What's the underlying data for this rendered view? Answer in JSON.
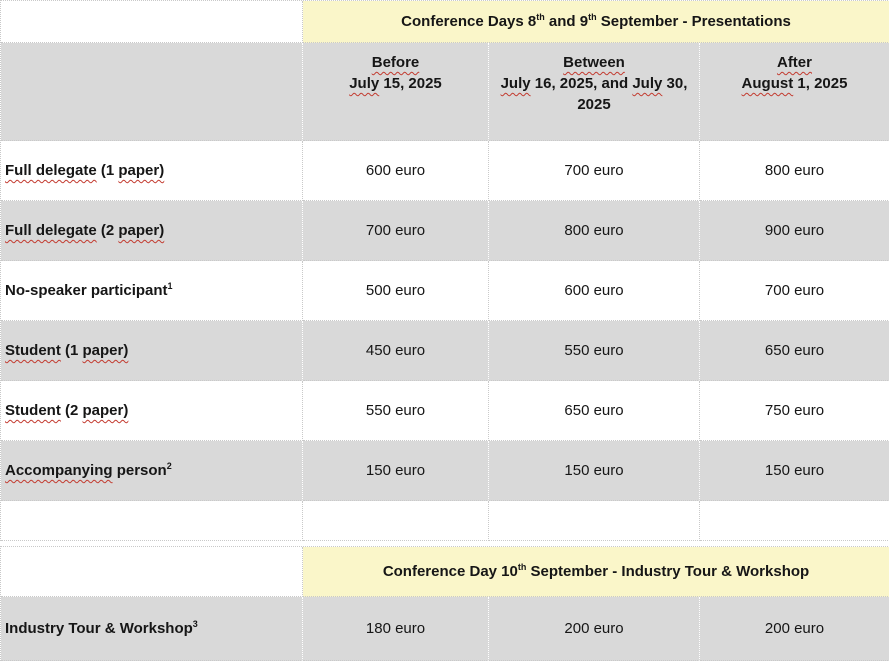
{
  "colors": {
    "banner_bg": "#FAF6C9",
    "shade_bg": "#D9D9D9",
    "text": "#161616",
    "squiggle_red": "#C23A2F",
    "gridline": "#C9C9C9"
  },
  "table1": {
    "banner": [
      {
        "t": "Conference Days 8"
      },
      {
        "t": "th",
        "sup": true
      },
      {
        "t": " and 9"
      },
      {
        "t": "th",
        "sup": true
      },
      {
        "t": " September - Presentations"
      }
    ],
    "header": {
      "col1": [
        {
          "t": "Before",
          "wavy": true
        },
        {
          "br": true
        },
        {
          "t": "July",
          "wavy": true
        },
        {
          "t": " 15, 2025"
        }
      ],
      "col2": [
        {
          "t": "Between",
          "wavy": true
        },
        {
          "br": true
        },
        {
          "t": "July",
          "wavy": true
        },
        {
          "t": " 16, 2025, and "
        },
        {
          "t": "July",
          "wavy": true
        },
        {
          "t": " 30, 2025"
        }
      ],
      "col3": [
        {
          "t": "After",
          "wavy": true
        },
        {
          "br": true
        },
        {
          "t": "August",
          "wavy": true
        },
        {
          "t": " 1, 2025"
        }
      ]
    },
    "rows": [
      {
        "label": [
          {
            "t": "Full delegate",
            "wavy": true
          },
          {
            "t": " (1 "
          },
          {
            "t": "paper)",
            "wavy": true
          }
        ],
        "prices": [
          "600 euro",
          "700 euro",
          "800 euro"
        ]
      },
      {
        "label": [
          {
            "t": "Full delegate",
            "wavy": true
          },
          {
            "t": " (2 "
          },
          {
            "t": "paper)",
            "wavy": true
          }
        ],
        "prices": [
          "700 euro",
          "800 euro",
          "900 euro"
        ]
      },
      {
        "label": [
          {
            "t": "No-speaker participant"
          },
          {
            "t": "1",
            "sup": true
          }
        ],
        "prices": [
          "500 euro",
          "600 euro",
          "700 euro"
        ]
      },
      {
        "label": [
          {
            "t": "Student",
            "wavy": true
          },
          {
            "t": " (1 "
          },
          {
            "t": "paper)",
            "wavy": true
          }
        ],
        "prices": [
          "450 euro",
          "550 euro",
          "650 euro"
        ]
      },
      {
        "label": [
          {
            "t": "Student",
            "wavy": true
          },
          {
            "t": " (2 "
          },
          {
            "t": "paper)",
            "wavy": true
          }
        ],
        "prices": [
          "550 euro",
          "650 euro",
          "750 euro"
        ]
      },
      {
        "label": [
          {
            "t": "Accompanying",
            "wavy": true
          },
          {
            "t": " person"
          },
          {
            "t": "2",
            "sup": true
          }
        ],
        "prices": [
          "150 euro",
          "150 euro",
          "150 euro"
        ]
      }
    ]
  },
  "table2": {
    "banner": [
      {
        "t": "Conference Day 10"
      },
      {
        "t": "th",
        "sup": true
      },
      {
        "t": " September - Industry Tour & Workshop"
      }
    ],
    "rows": [
      {
        "label": [
          {
            "t": "Industry Tour & Workshop"
          },
          {
            "t": "3",
            "sup": true
          }
        ],
        "prices": [
          "180 euro",
          "200 euro",
          "200 euro"
        ]
      }
    ]
  }
}
